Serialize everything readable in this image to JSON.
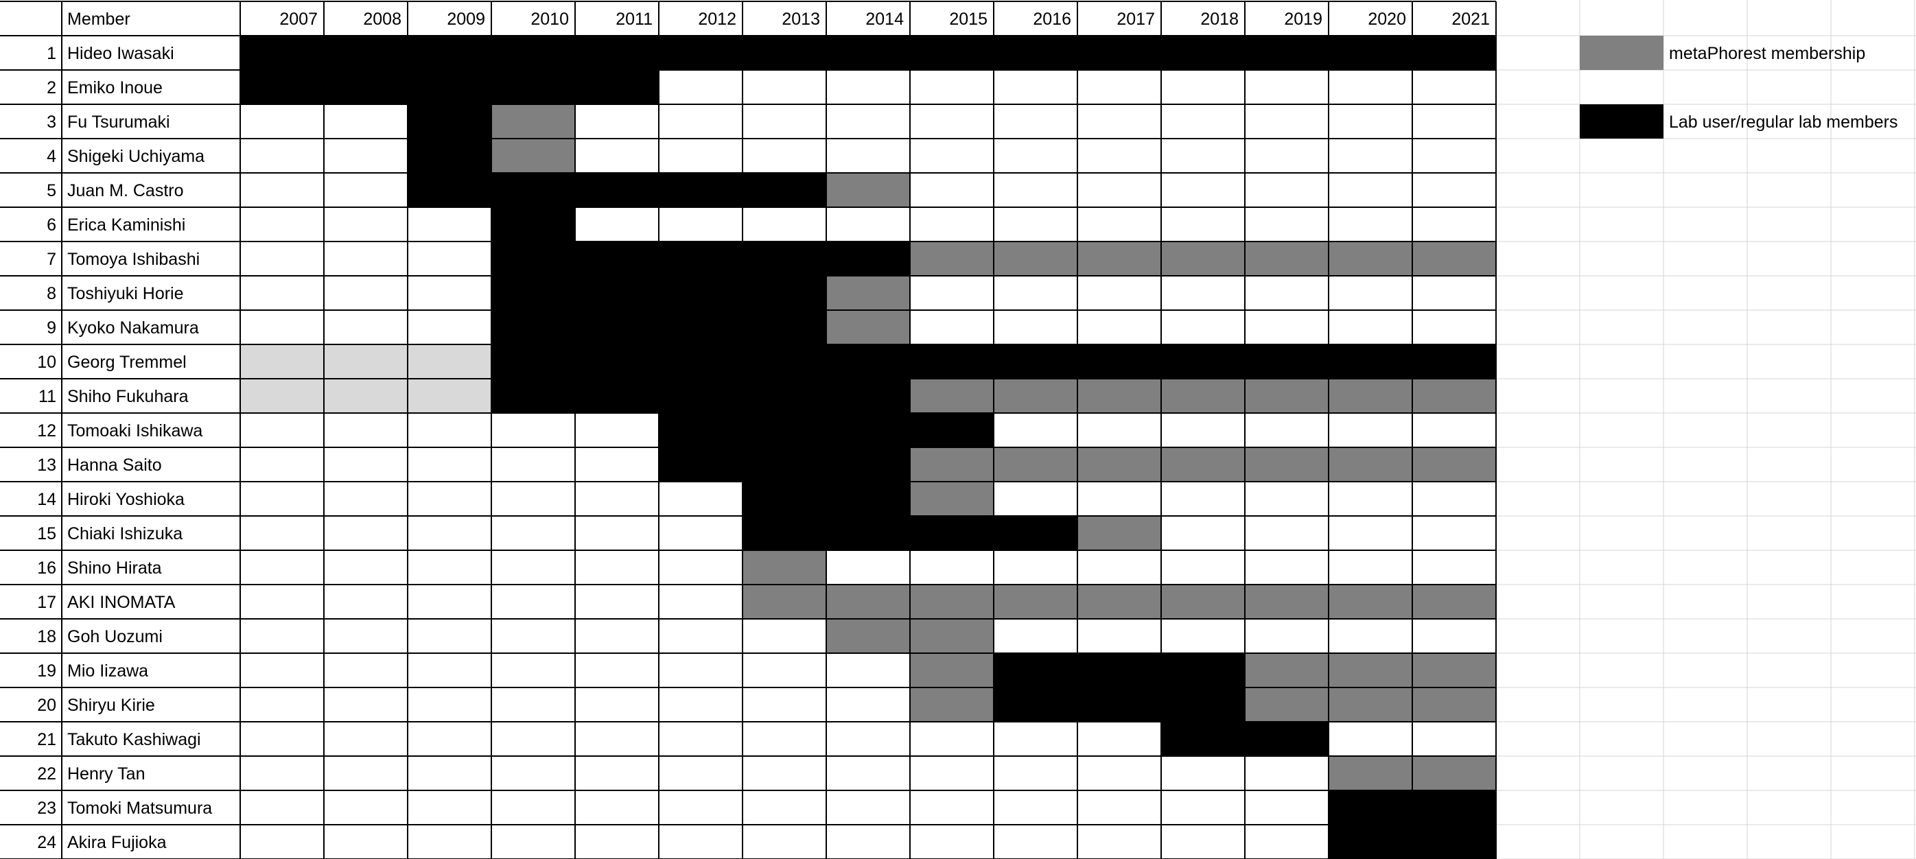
{
  "header": {
    "member_label": "Member"
  },
  "legend": [
    {
      "label": "metaPhorest membership",
      "color": "#808080"
    },
    {
      "label": "Lab user/regular lab members",
      "color": "#000000"
    }
  ],
  "colors": {
    "regular_member": "#000000",
    "metaphorest_membership": "#808080",
    "unmarked_light": "#d9d9d9",
    "empty": "#ffffff",
    "grid_dark": "#000000",
    "grid_light": "#d4d4d4"
  },
  "chart_data": {
    "type": "table",
    "years": [
      "2007",
      "2008",
      "2009",
      "2010",
      "2011",
      "2012",
      "2013",
      "2014",
      "2015",
      "2016",
      "2017",
      "2018",
      "2019",
      "2020",
      "2021"
    ],
    "status_codes": {
      "B": "Lab user/regular lab members",
      "G": "metaPhorest membership",
      "L": "light gray (no legend entry)",
      ".": "none"
    },
    "members": [
      {
        "num": "1",
        "name": "Hideo Iwasaki",
        "status": "BBBBBBBBBBBBBBB"
      },
      {
        "num": "2",
        "name": "Emiko Inoue",
        "status": "BBBBB.........."
      },
      {
        "num": "3",
        "name": "Fu Tsurumaki",
        "status": "..BG..........."
      },
      {
        "num": "4",
        "name": "Shigeki Uchiyama",
        "status": "..BG..........."
      },
      {
        "num": "5",
        "name": "Juan M. Castro",
        "status": "..BBBBBG......."
      },
      {
        "num": "6",
        "name": "Erica Kaminishi",
        "status": "...B..........."
      },
      {
        "num": "7",
        "name": "Tomoya Ishibashi",
        "status": "...BBBBBGGGGGGG"
      },
      {
        "num": "8",
        "name": "Toshiyuki Horie",
        "status": "...BBBBG......."
      },
      {
        "num": "9",
        "name": "Kyoko Nakamura",
        "status": "...BBBBG......."
      },
      {
        "num": "10",
        "name": "Georg Tremmel",
        "status": "LLLBBBBBBBBBBBB"
      },
      {
        "num": "11",
        "name": "Shiho Fukuhara",
        "status": "LLLBBBBBGGGGGGG"
      },
      {
        "num": "12",
        "name": "Tomoaki Ishikawa",
        "status": ".....BBBB......"
      },
      {
        "num": "13",
        "name": "Hanna Saito",
        "status": ".....BBBGGGGGGG"
      },
      {
        "num": "14",
        "name": "Hiroki Yoshioka",
        "status": "......BBG......"
      },
      {
        "num": "15",
        "name": "Chiaki Ishizuka",
        "status": "......BBBBG...."
      },
      {
        "num": "16",
        "name": "Shino Hirata",
        "status": "......G........"
      },
      {
        "num": "17",
        "name": "AKI INOMATA",
        "status": "......GGGGGGGGG"
      },
      {
        "num": "18",
        "name": "Goh Uozumi",
        "status": ".......GG......"
      },
      {
        "num": "19",
        "name": "Mio Iizawa",
        "status": "........GBBBGGG"
      },
      {
        "num": "20",
        "name": "Shiryu Kirie",
        "status": "........GBBBGGG"
      },
      {
        "num": "21",
        "name": "Takuto Kashiwagi",
        "status": "...........BB.."
      },
      {
        "num": "22",
        "name": "Henry Tan",
        "status": ".............GG"
      },
      {
        "num": "23",
        "name": "Tomoki Matsumura",
        "status": ".............BB"
      },
      {
        "num": "24",
        "name": "Akira Fujioka",
        "status": ".............BB"
      }
    ]
  }
}
